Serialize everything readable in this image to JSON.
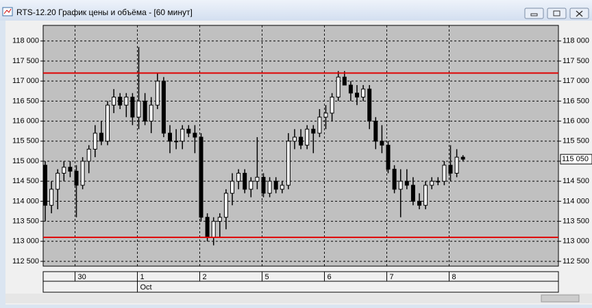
{
  "window_title": "RTS-12.20 График цены и объёма - [60 минут]",
  "chart_data": {
    "type": "candlestick",
    "categories": [
      null,
      null,
      null,
      null,
      null,
      "30",
      null,
      null,
      null,
      null,
      null,
      null,
      null,
      null,
      null,
      "1",
      null,
      null,
      null,
      null,
      null,
      null,
      null,
      null,
      null,
      "2",
      null,
      null,
      null,
      null,
      null,
      null,
      null,
      null,
      null,
      "5",
      null,
      null,
      null,
      null,
      null,
      null,
      null,
      null,
      null,
      "6",
      null,
      null,
      null,
      null,
      null,
      null,
      null,
      null,
      null,
      "7",
      null,
      null,
      null,
      null,
      null,
      null,
      null,
      null,
      null,
      "8",
      null,
      null
    ],
    "month_label": "Oct",
    "open": [
      114900,
      113900,
      114300,
      114700,
      114850,
      114750,
      114400,
      115000,
      115300,
      115700,
      115500,
      116400,
      116600,
      116400,
      116600,
      116100,
      116500,
      116000,
      116400,
      117000,
      115700,
      115500,
      115500,
      115800,
      115700,
      115600,
      113600,
      113100,
      113500,
      113600,
      114200,
      114500,
      114700,
      114300,
      114500,
      114600,
      114200,
      114500,
      114300,
      114400,
      115500,
      115600,
      115400,
      115800,
      115700,
      116100,
      116200,
      116600,
      117100,
      116900,
      116700,
      116600,
      116800,
      116000,
      115500,
      115400,
      114800,
      114300,
      114500,
      114400,
      114000,
      113900,
      114400,
      114500,
      114500,
      114900,
      114700,
      115100
    ],
    "high": [
      115000,
      114500,
      114800,
      115000,
      115000,
      114900,
      115100,
      115400,
      115900,
      116000,
      116500,
      116800,
      116700,
      116700,
      116700,
      117850,
      116700,
      116600,
      117200,
      117100,
      115900,
      115800,
      115900,
      115900,
      115900,
      115700,
      113700,
      113600,
      113700,
      114300,
      114700,
      114800,
      114800,
      114600,
      115600,
      114700,
      114600,
      114600,
      114500,
      115700,
      115800,
      115800,
      115900,
      115900,
      116300,
      116400,
      116700,
      117250,
      117250,
      117000,
      116900,
      116900,
      116900,
      116100,
      115900,
      115500,
      114900,
      114800,
      114800,
      114600,
      114200,
      114500,
      114600,
      114600,
      115000,
      115400,
      115300,
      115150
    ],
    "low": [
      113500,
      113700,
      113800,
      114500,
      114600,
      113600,
      114300,
      114700,
      115100,
      115400,
      115400,
      116200,
      116300,
      116100,
      115900,
      115800,
      115900,
      115700,
      116300,
      115600,
      115200,
      115300,
      115300,
      115600,
      115200,
      113500,
      113000,
      112900,
      113100,
      113300,
      113900,
      114300,
      114200,
      114100,
      114300,
      114100,
      114100,
      114200,
      114200,
      114300,
      115300,
      115300,
      115300,
      115200,
      115600,
      115800,
      116000,
      116500,
      116900,
      116500,
      116400,
      116500,
      115800,
      115300,
      115200,
      114700,
      114200,
      113600,
      114300,
      113900,
      113800,
      113800,
      114300,
      114400,
      114400,
      114500,
      114600,
      115000
    ],
    "close": [
      113900,
      114300,
      114700,
      114850,
      114750,
      114400,
      115000,
      115300,
      115700,
      115500,
      116400,
      116600,
      116400,
      116600,
      116100,
      116500,
      116000,
      116400,
      117000,
      115700,
      115500,
      115500,
      115800,
      115700,
      115600,
      113600,
      113100,
      113500,
      113600,
      114200,
      114500,
      114700,
      114300,
      114500,
      114600,
      114200,
      114500,
      114300,
      114400,
      115500,
      115600,
      115400,
      115800,
      115700,
      116100,
      116200,
      116600,
      117100,
      116900,
      116700,
      116600,
      116800,
      116000,
      115500,
      115400,
      114800,
      114300,
      114500,
      114400,
      114000,
      113900,
      114400,
      114500,
      114500,
      114900,
      114700,
      115100,
      115050
    ],
    "levels": [
      117200,
      113100
    ],
    "level_color": "#e00000",
    "last_price": {
      "value": 115050,
      "label": "115 050"
    },
    "ylim": [
      112380,
      118390
    ],
    "yticks": [
      {
        "value": 112500,
        "label": "112 500"
      },
      {
        "value": 113000,
        "label": "113 000"
      },
      {
        "value": 113500,
        "label": "113 500"
      },
      {
        "value": 114000,
        "label": "114 000"
      },
      {
        "value": 114500,
        "label": "114 500"
      },
      {
        "value": 115000,
        "label": "115 000"
      },
      {
        "value": 115500,
        "label": "115 500"
      },
      {
        "value": 116000,
        "label": "116 000"
      },
      {
        "value": 116500,
        "label": "116 500"
      },
      {
        "value": 117000,
        "label": "117 000"
      },
      {
        "value": 117500,
        "label": "117 500"
      },
      {
        "value": 118000,
        "label": "118 000"
      }
    ],
    "grid": true
  }
}
